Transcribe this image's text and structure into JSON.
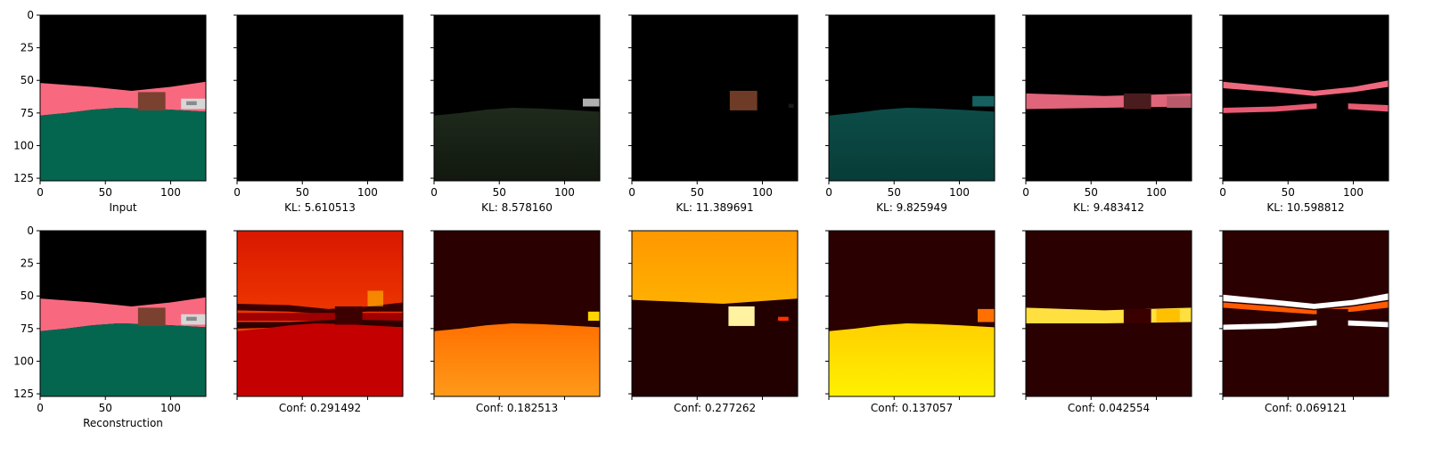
{
  "chart_data": {
    "type": "image-grid",
    "panel_axis": {
      "xlim": [
        0,
        127
      ],
      "ylim": [
        127,
        0
      ],
      "xticks": [
        0,
        50,
        100
      ],
      "yticks": [
        0,
        25,
        50,
        75,
        100,
        125
      ]
    },
    "top_row": [
      {
        "caption": "Input",
        "kind": "input"
      },
      {
        "caption": "KL: 5.610513",
        "kind": "black"
      },
      {
        "caption": "KL: 8.578160",
        "kind": "ground-dark"
      },
      {
        "caption": "KL: 11.389691",
        "kind": "box-only"
      },
      {
        "caption": "KL: 9.825949",
        "kind": "ground-teal"
      },
      {
        "caption": "KL: 9.483412",
        "kind": "band-pink"
      },
      {
        "caption": "KL: 10.598812",
        "kind": "band-pink-thin"
      }
    ],
    "bottom_row": [
      {
        "caption": "Reconstruction",
        "kind": "input"
      },
      {
        "caption": "Conf: 0.291492",
        "kind": "heat-red",
        "value": 0.291492
      },
      {
        "caption": "Conf: 0.182513",
        "kind": "heat-ground-orange",
        "value": 0.182513
      },
      {
        "caption": "Conf: 0.277262",
        "kind": "heat-sky-orange",
        "value": 0.277262
      },
      {
        "caption": "Conf: 0.137057",
        "kind": "heat-ground-yellow",
        "value": 0.137057
      },
      {
        "caption": "Conf: 0.042554",
        "kind": "heat-band",
        "value": 0.042554
      },
      {
        "caption": "Conf: 0.069121",
        "kind": "heat-band-thin",
        "value": 0.069121
      }
    ],
    "colors": {
      "sky": "#000000",
      "road_pink": "#f8697f",
      "ground_green": "#056650",
      "box_brown": "#7a4030",
      "heat_dark": "#2a0000",
      "heat_red": "#c40000",
      "heat_orange": "#ff7a00",
      "heat_yellow": "#ffd400"
    }
  }
}
